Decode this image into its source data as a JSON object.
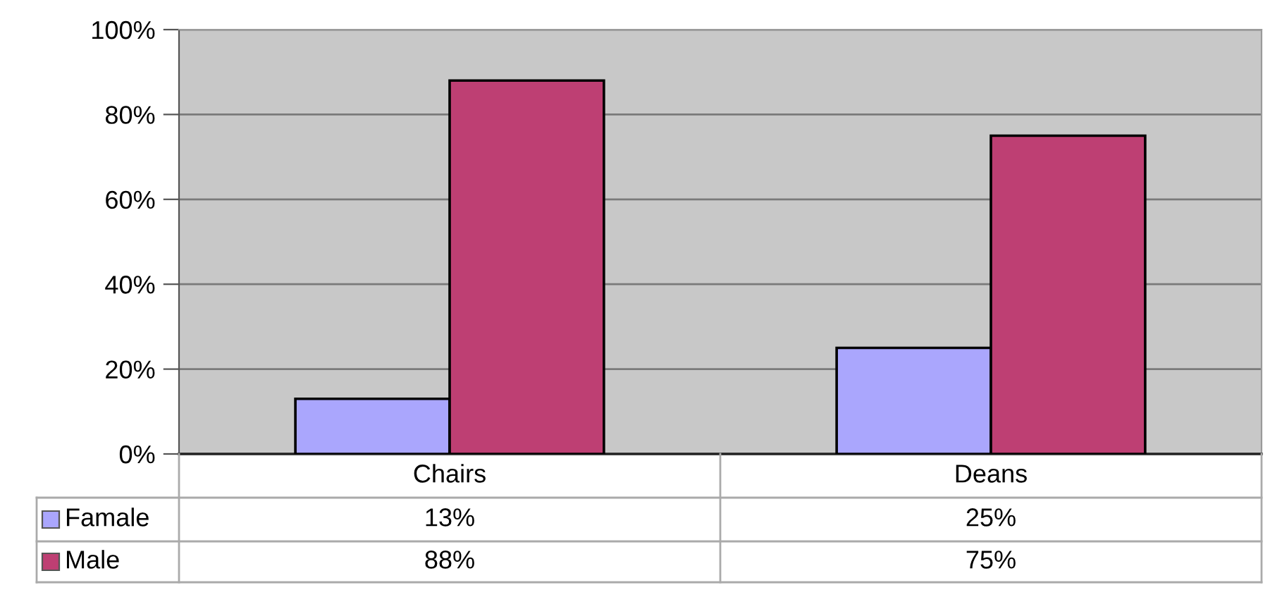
{
  "chart_data": {
    "type": "bar",
    "categories": [
      "Chairs",
      "Deans"
    ],
    "series": [
      {
        "name": "Famale",
        "color": "#aaa6fd",
        "values": [
          13,
          25
        ],
        "value_labels": [
          "13%",
          "25%"
        ]
      },
      {
        "name": "Male",
        "color": "#be3f73",
        "values": [
          88,
          75
        ],
        "value_labels": [
          "88%",
          "75%"
        ]
      }
    ],
    "ylim": [
      0,
      100
    ],
    "yticks": [
      {
        "value": 0,
        "label": "0%"
      },
      {
        "value": 20,
        "label": "20%"
      },
      {
        "value": 40,
        "label": "40%"
      },
      {
        "value": 60,
        "label": "60%"
      },
      {
        "value": 80,
        "label": "80%"
      },
      {
        "value": 100,
        "label": "100%"
      }
    ],
    "grid": "y",
    "legend": "bottom"
  }
}
